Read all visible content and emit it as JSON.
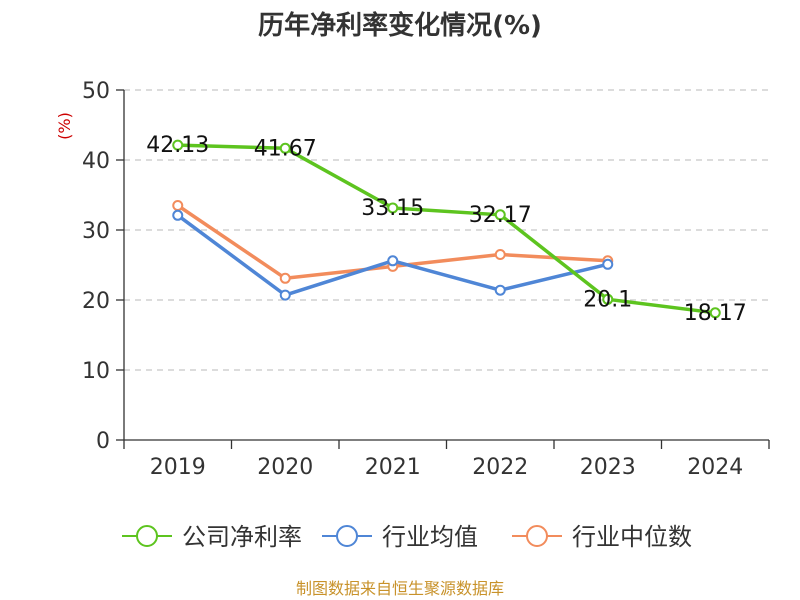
{
  "chart_data": {
    "type": "line",
    "title": "历年净利率变化情况(%)",
    "ylabel": "(%)",
    "xlabel": "",
    "categories": [
      "2019",
      "2020",
      "2021",
      "2022",
      "2023",
      "2024"
    ],
    "ylim": [
      0,
      50
    ],
    "yticks": [
      0,
      10,
      20,
      30,
      40,
      50
    ],
    "grid": "horizontal-dashed",
    "legend_position": "bottom",
    "series": [
      {
        "name": "公司净利率",
        "color": "#5dc41f",
        "values": [
          42.13,
          41.67,
          33.15,
          32.17,
          20.1,
          18.17
        ],
        "labels": [
          "42.13",
          "41.67",
          "33.15",
          "32.17",
          "20.1",
          "18.17"
        ]
      },
      {
        "name": "行业均值",
        "color": "#4f86d6",
        "values": [
          32.1,
          20.7,
          25.6,
          21.4,
          25.1,
          null
        ]
      },
      {
        "name": "行业中位数",
        "color": "#f28c5c",
        "values": [
          33.5,
          23.1,
          24.8,
          26.5,
          25.6,
          null
        ]
      }
    ]
  },
  "source": "制图数据来自恒生聚源数据库"
}
